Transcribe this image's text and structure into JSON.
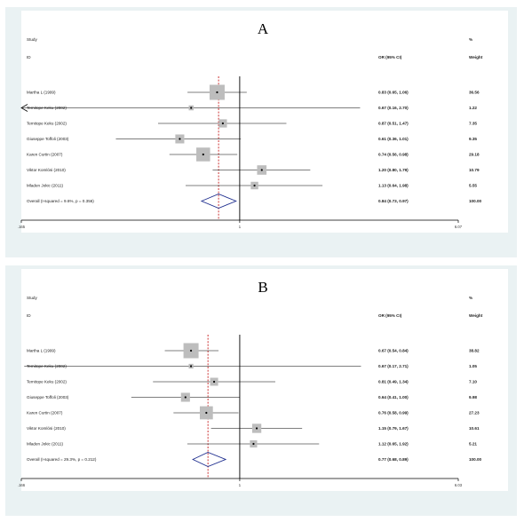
{
  "chart_data": [
    {
      "type": "forest",
      "panel_label": "A",
      "headers": {
        "study": "Study",
        "id": "ID",
        "or_ci": "OR (95% CI)",
        "pct": "%",
        "weight": "Weight"
      },
      "studies": [
        {
          "label": "Martha L (1999)",
          "or": 0.83,
          "lo": 0.65,
          "hi": 1.06,
          "ci_text": "0.83 (0.65, 1.06)",
          "weight": 36.56,
          "weight_text": "36.56"
        },
        {
          "label": "Temitope Keku (2002)",
          "or": 0.67,
          "lo": 0.16,
          "hi": 2.7,
          "ci_text": "0.67 (0.16, 2.70)",
          "weight": 1.22,
          "weight_text": "1.22"
        },
        {
          "label": "Temitope Keku (2002)",
          "or": 0.87,
          "lo": 0.51,
          "hi": 1.47,
          "ci_text": "0.87 (0.51, 1.47)",
          "weight": 7.35,
          "weight_text": "7.35"
        },
        {
          "label": "Giuseppe Toffoli (2003)",
          "or": 0.61,
          "lo": 0.36,
          "hi": 1.01,
          "ci_text": "0.61 (0.36, 1.01)",
          "weight": 9.35,
          "weight_text": "9.35"
        },
        {
          "label": "Karen Curtin (2007)",
          "or": 0.74,
          "lo": 0.56,
          "hi": 0.98,
          "ci_text": "0.74 (0.56, 0.98)",
          "weight": 29.18,
          "weight_text": "29.18"
        },
        {
          "label": "Viktor Komlósi (2010)",
          "or": 1.2,
          "lo": 0.8,
          "hi": 1.79,
          "ci_text": "1.20 (0.80, 1.79)",
          "weight": 10.79,
          "weight_text": "10.79"
        },
        {
          "label": "Mladen Jokic (2011)",
          "or": 1.13,
          "lo": 0.64,
          "hi": 1.98,
          "ci_text": "1.13 (0.64, 1.98)",
          "weight": 5.55,
          "weight_text": "5.55"
        }
      ],
      "overall": {
        "label": "Overall  (I-squared = 9.6%, p = 0.356)",
        "or": 0.84,
        "lo": 0.73,
        "hi": 0.97,
        "ci_text": "0.84 (0.73, 0.97)",
        "weight_text": "100.00"
      },
      "x_scale": "log",
      "x_ticks": [
        {
          "value": 0.165,
          "label": ".165"
        },
        {
          "value": 1,
          "label": "1"
        },
        {
          "value": 6.07,
          "label": "6.07"
        }
      ]
    },
    {
      "type": "forest",
      "panel_label": "B",
      "headers": {
        "study": "Study",
        "id": "ID",
        "or_ci": "OR (95% CI)",
        "pct": "%",
        "weight": "Weight"
      },
      "studies": [
        {
          "label": "Martha L (1999)",
          "or": 0.67,
          "lo": 0.54,
          "hi": 0.84,
          "ci_text": "0.67 (0.54, 0.84)",
          "weight": 38.82,
          "weight_text": "38.82"
        },
        {
          "label": "Temitope Keku (2002)",
          "or": 0.67,
          "lo": 0.17,
          "hi": 2.71,
          "ci_text": "0.67 (0.17, 2.71)",
          "weight": 1.05,
          "weight_text": "1.05"
        },
        {
          "label": "Temitope Keku (2002)",
          "or": 0.81,
          "lo": 0.49,
          "hi": 1.34,
          "ci_text": "0.81 (0.49, 1.34)",
          "weight": 7.1,
          "weight_text": "7.10"
        },
        {
          "label": "Giuseppe Toffoli (2003)",
          "or": 0.64,
          "lo": 0.41,
          "hi": 1.0,
          "ci_text": "0.64 (0.41, 1.00)",
          "weight": 9.98,
          "weight_text": "9.98"
        },
        {
          "label": "Karen Curtin (2007)",
          "or": 0.76,
          "lo": 0.58,
          "hi": 0.99,
          "ci_text": "0.76 (0.58, 0.99)",
          "weight": 27.23,
          "weight_text": "27.23"
        },
        {
          "label": "Viktor Komlósi (2010)",
          "or": 1.15,
          "lo": 0.79,
          "hi": 1.67,
          "ci_text": "1.15 (0.79, 1.67)",
          "weight": 10.61,
          "weight_text": "10.61"
        },
        {
          "label": "Mladen Jokic (2011)",
          "or": 1.12,
          "lo": 0.65,
          "hi": 1.92,
          "ci_text": "1.12 (0.65, 1.92)",
          "weight": 5.21,
          "weight_text": "5.21"
        }
      ],
      "overall": {
        "label": "Overall  (I-squared = 29.3%, p = 0.212)",
        "or": 0.77,
        "lo": 0.68,
        "hi": 0.89,
        "ci_text": "0.77 (0.68, 0.89)",
        "weight_text": "100.00"
      },
      "x_scale": "log",
      "x_ticks": [
        {
          "value": 0.166,
          "label": ".166"
        },
        {
          "value": 1,
          "label": "1"
        },
        {
          "value": 6.03,
          "label": "6.03"
        }
      ]
    }
  ],
  "colors": {
    "panel_bg": "#eaf2f3",
    "plot_bg": "#ffffff",
    "box": "#bdbdbd",
    "overall_diamond": "#1f2f8f",
    "dashed_line": "#c00000"
  }
}
